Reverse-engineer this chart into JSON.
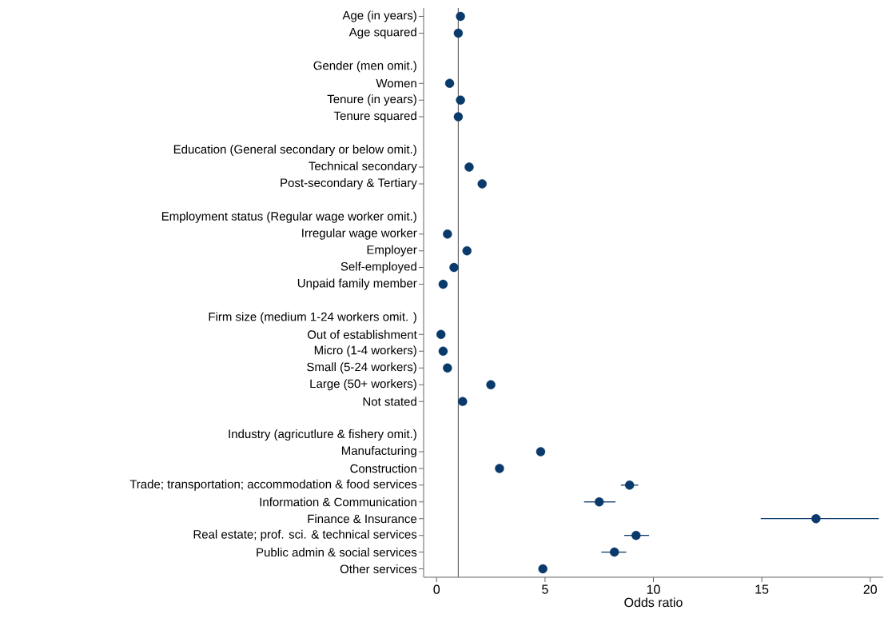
{
  "chart_data": {
    "type": "scatter",
    "orientation": "horizontal",
    "xlabel": "Odds ratio",
    "categories": [
      "Age (in years)",
      "Age squared",
      null,
      "Gender (men omit.)",
      "Women",
      "Tenure (in years)",
      "Tenure squared",
      null,
      "Education (General secondary or below omit.)",
      "Technical secondary",
      "Post-secondary & Tertiary",
      null,
      "Employment status (Regular wage worker omit.)",
      "Irregular wage worker",
      "Employer",
      "Self-employed",
      "Unpaid family member",
      null,
      "Firm size (medium 1-24 workers omit. )",
      "Out of establishment",
      "Micro (1-4 workers)",
      "Small (5-24 workers)",
      "Large (50+ workers)",
      "Not stated",
      null,
      "Industry (agricutlure & fishery omit.)",
      "Manufacturing",
      "Construction",
      "Trade; transportation; accommodation & food services",
      "Information & Communication",
      "Finance & Insurance",
      "Real estate; prof. sci. & technical services",
      "Public admin & social services",
      "Other services"
    ],
    "values": [
      1.1,
      1.0,
      null,
      null,
      0.6,
      1.1,
      1.0,
      null,
      null,
      1.5,
      2.1,
      null,
      null,
      0.5,
      1.4,
      0.8,
      0.3,
      null,
      null,
      0.2,
      0.3,
      0.5,
      2.5,
      1.2,
      null,
      null,
      4.8,
      2.9,
      8.9,
      7.5,
      17.5,
      9.2,
      8.2,
      4.9
    ],
    "errors": [
      null,
      null,
      null,
      null,
      null,
      null,
      null,
      null,
      null,
      null,
      null,
      null,
      null,
      null,
      null,
      null,
      null,
      null,
      null,
      null,
      null,
      null,
      null,
      null,
      null,
      null,
      null,
      null,
      [
        8.5,
        9.3
      ],
      [
        6.8,
        8.25
      ],
      [
        14.95,
        20.4
      ],
      [
        8.65,
        9.8
      ],
      [
        7.6,
        8.75
      ],
      null
    ],
    "color": "#0a3a6b",
    "xlim": [
      -0.6,
      20.6
    ],
    "xticks": [
      0,
      5,
      10,
      15,
      20
    ],
    "ref_lines": [
      {
        "axis": "x",
        "value": 1,
        "color": "#6b6b6b"
      }
    ]
  }
}
